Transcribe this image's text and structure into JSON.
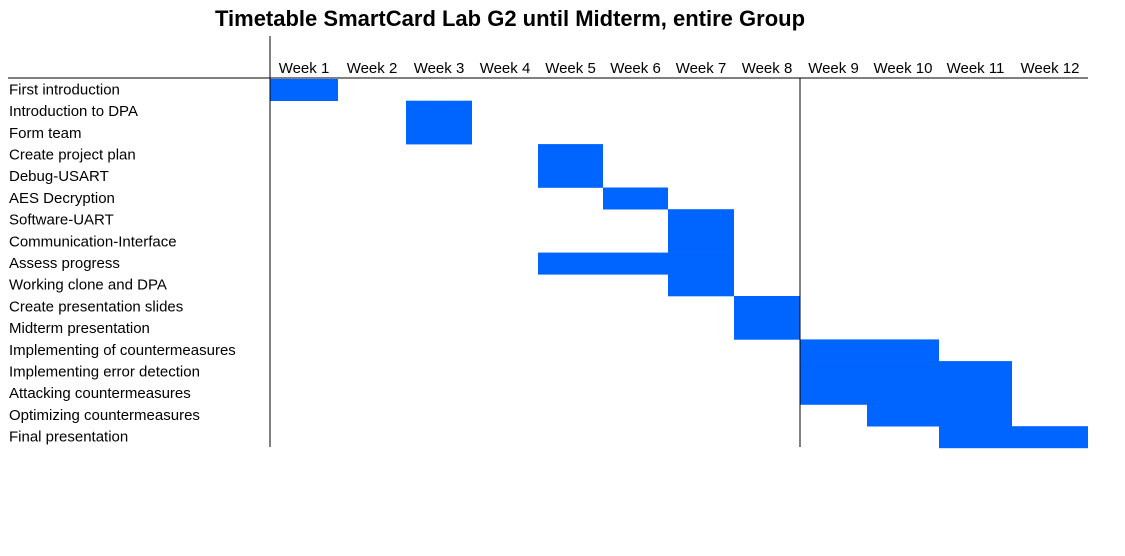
{
  "chart_data": {
    "type": "bar",
    "title": "Timetable SmartCard Lab G2 until Midterm, entire Group",
    "xlabel": "",
    "ylabel": "",
    "categories": [
      "Week 1",
      "Week 2",
      "Week 3",
      "Week 4",
      "Week 5",
      "Week 6",
      "Week 7",
      "Week 8",
      "Week 9",
      "Week 10",
      "Week 11",
      "Week 12"
    ],
    "bar_color": "#0064FF",
    "milestone_after_week": "Week 8",
    "tasks": [
      {
        "name": "First introduction",
        "start_week": 1,
        "end_week": 1
      },
      {
        "name": "Introduction to DPA",
        "start_week": 3,
        "end_week": 3
      },
      {
        "name": "Form team",
        "start_week": 3,
        "end_week": 3
      },
      {
        "name": "Create project plan",
        "start_week": 5,
        "end_week": 5
      },
      {
        "name": "Debug-USART",
        "start_week": 5,
        "end_week": 5
      },
      {
        "name": "AES Decryption",
        "start_week": 6,
        "end_week": 6
      },
      {
        "name": "Software-UART",
        "start_week": 7,
        "end_week": 7
      },
      {
        "name": "Communication-Interface",
        "start_week": 7,
        "end_week": 7
      },
      {
        "name": "Assess progress",
        "start_week": 5,
        "end_week": 7
      },
      {
        "name": "Working clone and DPA",
        "start_week": 7,
        "end_week": 7
      },
      {
        "name": "Create presentation slides",
        "start_week": 8,
        "end_week": 8
      },
      {
        "name": "Midterm presentation",
        "start_week": 8,
        "end_week": 8
      },
      {
        "name": "Implementing of countermeasures",
        "start_week": 9,
        "end_week": 10
      },
      {
        "name": "Implementing error detection",
        "start_week": 9,
        "end_week": 11
      },
      {
        "name": "Attacking countermeasures",
        "start_week": 9,
        "end_week": 11
      },
      {
        "name": "Optimizing countermeasures",
        "start_week": 10,
        "end_week": 11
      },
      {
        "name": "Final presentation",
        "start_week": 11,
        "end_week": 12
      }
    ]
  }
}
